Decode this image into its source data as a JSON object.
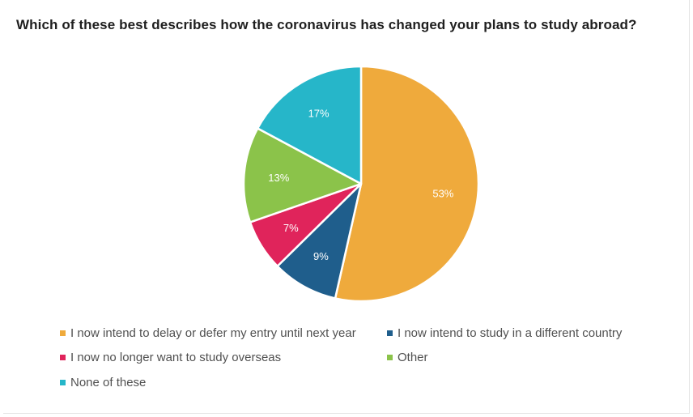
{
  "chart_data": {
    "type": "pie",
    "title": "Which of these best describes how the coronavirus has changed your plans to study abroad?",
    "slices": [
      {
        "label": "I now intend to delay or defer my entry until next year",
        "value": 53,
        "display": "53%",
        "color": "#EFAA3C"
      },
      {
        "label": "I now intend to study in a different country",
        "value": 9,
        "display": "9%",
        "color": "#1F5E8C"
      },
      {
        "label": "I now no longer want to study overseas",
        "value": 7,
        "display": "7%",
        "color": "#E0245B"
      },
      {
        "label": "Other",
        "value": 13,
        "display": "13%",
        "color": "#8BC34A"
      },
      {
        "label": "None of these",
        "value": 17,
        "display": "17%",
        "color": "#26B6C9"
      }
    ],
    "legend_position": "bottom"
  }
}
